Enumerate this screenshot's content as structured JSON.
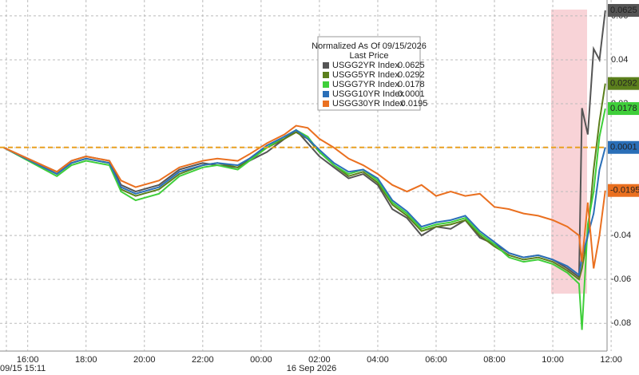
{
  "chart_data": {
    "type": "line",
    "legend_title": "Normalized As Of 09/15/2026",
    "legend_subtitle": "Last Price",
    "start_label": "09/15 15:11",
    "date_label": "16 Sep 2026",
    "xlim": [
      15.05,
      35.86
    ],
    "xticks": [
      {
        "value": 16,
        "label": "16:00"
      },
      {
        "value": 18,
        "label": "18:00"
      },
      {
        "value": 20,
        "label": "20:00"
      },
      {
        "value": 22,
        "label": "22:00"
      },
      {
        "value": 24,
        "label": "00:00"
      },
      {
        "value": 26,
        "label": "02:00"
      },
      {
        "value": 28,
        "label": "04:00"
      },
      {
        "value": 30,
        "label": "06:00"
      },
      {
        "value": 32,
        "label": "08:00"
      },
      {
        "value": 34,
        "label": "10:00"
      },
      {
        "value": 36,
        "label": "12:00"
      }
    ],
    "ylim": [
      -0.089,
      0.0636
    ],
    "yticks": [
      -0.08,
      -0.06,
      -0.04,
      -0.02,
      {
        "value": 0,
        "label": "0.00"
      },
      0.02,
      0.04,
      0.06
    ],
    "grid": true,
    "x": [
      15.18,
      17.0,
      17.5,
      18.0,
      18.8,
      19.2,
      19.7,
      20.5,
      21.2,
      22.0,
      22.5,
      23.2,
      23.6,
      24.2,
      24.8,
      25.2,
      25.6,
      26.0,
      26.5,
      27.0,
      27.5,
      28.0,
      28.5,
      29.0,
      29.5,
      30.0,
      30.5,
      31.0,
      31.5,
      32.0,
      32.5,
      33.0,
      33.5,
      34.0,
      34.5,
      34.9,
      35.0,
      35.2,
      35.4,
      35.6,
      35.8
    ],
    "series": [
      {
        "name": "USGG2YR Index",
        "color": "#555555",
        "last": 0.0625,
        "values": [
          0,
          -0.011,
          -0.006,
          -0.004,
          -0.006,
          -0.017,
          -0.02,
          -0.017,
          -0.01,
          -0.007,
          -0.008,
          -0.009,
          -0.006,
          -0.002,
          0.004,
          0.008,
          0.002,
          -0.004,
          -0.009,
          -0.014,
          -0.012,
          -0.017,
          -0.028,
          -0.032,
          -0.04,
          -0.036,
          -0.037,
          -0.033,
          -0.041,
          -0.044,
          -0.048,
          -0.05,
          -0.049,
          -0.051,
          -0.055,
          -0.059,
          0.018,
          0.006,
          0.045,
          0.04,
          0.0625
        ]
      },
      {
        "name": "USGG5YR Index",
        "color": "#5b7f1c",
        "last": 0.0292,
        "values": [
          0,
          -0.012,
          -0.007,
          -0.005,
          -0.007,
          -0.019,
          -0.022,
          -0.019,
          -0.012,
          -0.008,
          -0.007,
          -0.009,
          -0.005,
          0.0,
          0.004,
          0.007,
          0.004,
          -0.002,
          -0.008,
          -0.013,
          -0.011,
          -0.016,
          -0.026,
          -0.031,
          -0.038,
          -0.036,
          -0.035,
          -0.033,
          -0.04,
          -0.045,
          -0.049,
          -0.051,
          -0.05,
          -0.052,
          -0.056,
          -0.06,
          -0.055,
          -0.04,
          -0.01,
          0.012,
          0.0292
        ]
      },
      {
        "name": "USGG7YR Index",
        "color": "#3fcf3a",
        "last": 0.0178,
        "values": [
          0,
          -0.013,
          -0.008,
          -0.006,
          -0.008,
          -0.02,
          -0.024,
          -0.021,
          -0.013,
          -0.009,
          -0.008,
          -0.01,
          -0.006,
          0.0,
          0.005,
          0.008,
          0.005,
          -0.002,
          -0.008,
          -0.012,
          -0.01,
          -0.015,
          -0.025,
          -0.03,
          -0.037,
          -0.035,
          -0.034,
          -0.032,
          -0.039,
          -0.044,
          -0.05,
          -0.052,
          -0.051,
          -0.053,
          -0.057,
          -0.062,
          -0.083,
          -0.035,
          -0.02,
          0.005,
          0.0178
        ]
      },
      {
        "name": "USGG10YR Index",
        "color": "#2a6fb8",
        "last": 0.0001,
        "values": [
          0,
          -0.012,
          -0.007,
          -0.005,
          -0.007,
          -0.018,
          -0.021,
          -0.018,
          -0.011,
          -0.008,
          -0.007,
          -0.008,
          -0.005,
          0.001,
          0.005,
          0.008,
          0.004,
          -0.001,
          -0.007,
          -0.011,
          -0.01,
          -0.014,
          -0.024,
          -0.029,
          -0.036,
          -0.034,
          -0.033,
          -0.031,
          -0.038,
          -0.043,
          -0.048,
          -0.05,
          -0.049,
          -0.051,
          -0.054,
          -0.058,
          -0.05,
          -0.04,
          -0.03,
          -0.01,
          0.0001
        ]
      },
      {
        "name": "USGG30YR Index",
        "color": "#ea7020",
        "last": -0.0195,
        "values": [
          0,
          -0.011,
          -0.006,
          -0.004,
          -0.006,
          -0.015,
          -0.018,
          -0.015,
          -0.009,
          -0.006,
          -0.005,
          -0.006,
          -0.003,
          0.002,
          0.006,
          0.01,
          0.009,
          0.004,
          0.0,
          -0.005,
          -0.008,
          -0.012,
          -0.017,
          -0.02,
          -0.017,
          -0.022,
          -0.02,
          -0.022,
          -0.021,
          -0.027,
          -0.028,
          -0.03,
          -0.031,
          -0.033,
          -0.036,
          -0.04,
          -0.052,
          -0.025,
          -0.055,
          -0.04,
          -0.0195
        ]
      }
    ]
  }
}
